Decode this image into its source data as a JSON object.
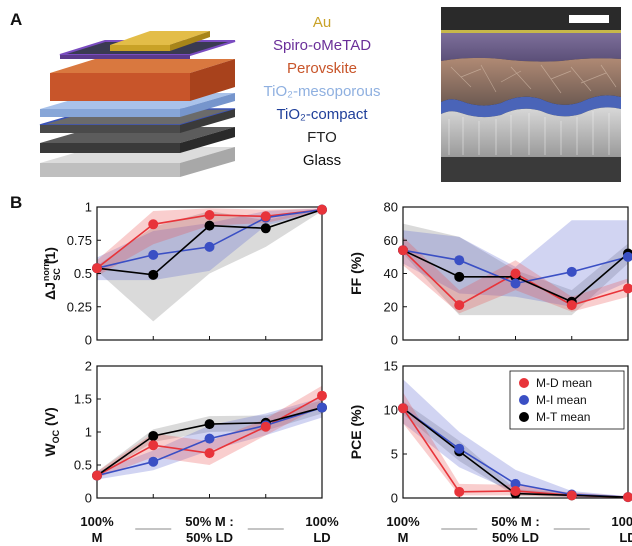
{
  "panel_a": {
    "letter": "A",
    "layers": [
      {
        "label": "Au",
        "color": "#c9a227"
      },
      {
        "label": "Spiro-oMeTAD",
        "color": "#6a2f99"
      },
      {
        "label": "Perovskite",
        "color": "#c8552a"
      },
      {
        "label": "TiO₂-mesoporous",
        "color": "#8fb0e0"
      },
      {
        "label": "TiO₂-compact",
        "color": "#1f3f9a"
      },
      {
        "label": "FTO",
        "color": "#222222"
      },
      {
        "label": "Glass",
        "color": "#111111"
      }
    ]
  },
  "panel_b": {
    "letter": "B",
    "x_categories": [
      {
        "line1": "100%",
        "line2": "M"
      },
      {
        "line1": "50% M :",
        "line2": "50% LD"
      },
      {
        "line1": "100%",
        "line2": "LD"
      }
    ]
  },
  "colors": {
    "M-D": "#e8343a",
    "M-I": "#3a4fc4",
    "M-T": "#000000",
    "band_D": "rgba(232,80,80,0.28)",
    "band_I": "rgba(90,100,210,0.28)",
    "band_T": "rgba(150,150,150,0.35)"
  },
  "legend": [
    "M-D mean",
    "M-I mean",
    "M-T mean"
  ],
  "chart_data": [
    {
      "type": "line",
      "ylabel_main": "ΔJ",
      "ylabel_sup": "norm",
      "ylabel_sub": "SC",
      "ylabel_unit": " (1)",
      "x": [
        0,
        0.25,
        0.5,
        0.75,
        1
      ],
      "ylim": [
        0,
        1
      ],
      "yticks": [
        "0",
        "0.25",
        "0.5",
        "0.75",
        "1"
      ],
      "ytick_values": [
        0,
        0.25,
        0.5,
        0.75,
        1
      ],
      "series": [
        {
          "name": "M-D mean",
          "values": [
            0.54,
            0.87,
            0.94,
            0.93,
            0.98
          ],
          "lower": [
            0.48,
            0.72,
            0.86,
            0.88,
            0.97
          ],
          "upper": [
            0.6,
            0.97,
            0.99,
            0.98,
            0.99
          ]
        },
        {
          "name": "M-I mean",
          "values": [
            0.54,
            0.64,
            0.7,
            0.92,
            0.98
          ],
          "lower": [
            0.45,
            0.45,
            0.52,
            0.86,
            0.97
          ],
          "upper": [
            0.62,
            0.82,
            0.88,
            0.97,
            0.99
          ]
        },
        {
          "name": "M-T mean",
          "values": [
            0.54,
            0.49,
            0.86,
            0.84,
            0.98
          ],
          "lower": [
            0.52,
            0.14,
            0.5,
            0.7,
            0.97
          ],
          "upper": [
            0.56,
            0.85,
            0.97,
            0.9,
            0.99
          ]
        }
      ]
    },
    {
      "type": "line",
      "ylabel_main": "FF (%)",
      "ylabel_sup": "",
      "ylabel_sub": "",
      "ylabel_unit": "",
      "x": [
        0,
        0.25,
        0.5,
        0.75,
        1
      ],
      "ylim": [
        0,
        80
      ],
      "yticks": [
        "0",
        "20",
        "40",
        "60",
        "80"
      ],
      "ytick_values": [
        0,
        20,
        40,
        60,
        80
      ],
      "series": [
        {
          "name": "M-D mean",
          "values": [
            54,
            21,
            40,
            21,
            31
          ],
          "lower": [
            45,
            16,
            30,
            17,
            26
          ],
          "upper": [
            62,
            30,
            48,
            26,
            37
          ]
        },
        {
          "name": "M-I mean",
          "values": [
            54,
            48,
            34,
            41,
            50
          ],
          "lower": [
            46,
            28,
            26,
            20,
            35
          ],
          "upper": [
            66,
            62,
            44,
            72,
            72
          ]
        },
        {
          "name": "M-T mean",
          "values": [
            54,
            38,
            38,
            23,
            52
          ],
          "lower": [
            52,
            15,
            15,
            15,
            46
          ],
          "upper": [
            70,
            62,
            42,
            30,
            58
          ]
        }
      ]
    },
    {
      "type": "line",
      "ylabel_main": "W",
      "ylabel_sup": "",
      "ylabel_sub": "OC",
      "ylabel_unit": " (V)",
      "x": [
        0,
        0.25,
        0.5,
        0.75,
        1
      ],
      "ylim": [
        0,
        2
      ],
      "yticks": [
        "0",
        "0.5",
        "1",
        "1.5",
        "2"
      ],
      "ytick_values": [
        0,
        0.5,
        1,
        1.5,
        2
      ],
      "series": [
        {
          "name": "M-D mean",
          "values": [
            0.34,
            0.8,
            0.68,
            1.08,
            1.55
          ],
          "lower": [
            0.3,
            0.62,
            0.5,
            0.95,
            1.4
          ],
          "upper": [
            0.4,
            0.98,
            0.86,
            1.2,
            1.7
          ]
        },
        {
          "name": "M-I mean",
          "values": [
            0.34,
            0.55,
            0.9,
            1.1,
            1.37
          ],
          "lower": [
            0.28,
            0.42,
            0.72,
            0.95,
            1.22
          ],
          "upper": [
            0.4,
            0.72,
            1.1,
            1.28,
            1.52
          ]
        },
        {
          "name": "M-T mean",
          "values": [
            0.34,
            0.94,
            1.12,
            1.14,
            1.37
          ],
          "lower": [
            0.32,
            0.85,
            1.0,
            1.02,
            1.28
          ],
          "upper": [
            0.4,
            1.04,
            1.24,
            1.25,
            1.48
          ]
        }
      ]
    },
    {
      "type": "line",
      "ylabel_main": "PCE (%)",
      "ylabel_sup": "",
      "ylabel_sub": "",
      "ylabel_unit": "",
      "x": [
        0,
        0.25,
        0.5,
        0.75,
        1
      ],
      "ylim": [
        0,
        15
      ],
      "yticks": [
        "0",
        "5",
        "10",
        "15"
      ],
      "ytick_values": [
        0,
        5,
        10,
        15
      ],
      "series": [
        {
          "name": "M-D mean",
          "values": [
            10.2,
            0.7,
            0.8,
            0.3,
            0.1
          ],
          "lower": [
            8.5,
            0.3,
            0.3,
            0.1,
            0.0
          ],
          "upper": [
            12,
            1.6,
            1.5,
            0.6,
            0.2
          ]
        },
        {
          "name": "M-I mean",
          "values": [
            10.2,
            5.6,
            1.6,
            0.4,
            0.1
          ],
          "lower": [
            8.5,
            3.5,
            0.6,
            0.1,
            0.0
          ],
          "upper": [
            13.5,
            7.5,
            3.2,
            0.8,
            0.2
          ]
        },
        {
          "name": "M-T mean",
          "values": [
            10.2,
            5.3,
            0.5,
            0.3,
            0.1
          ],
          "lower": [
            9.5,
            4.2,
            0.2,
            0.1,
            0.0
          ],
          "upper": [
            11,
            6.5,
            1.0,
            0.6,
            0.2
          ]
        }
      ]
    }
  ]
}
